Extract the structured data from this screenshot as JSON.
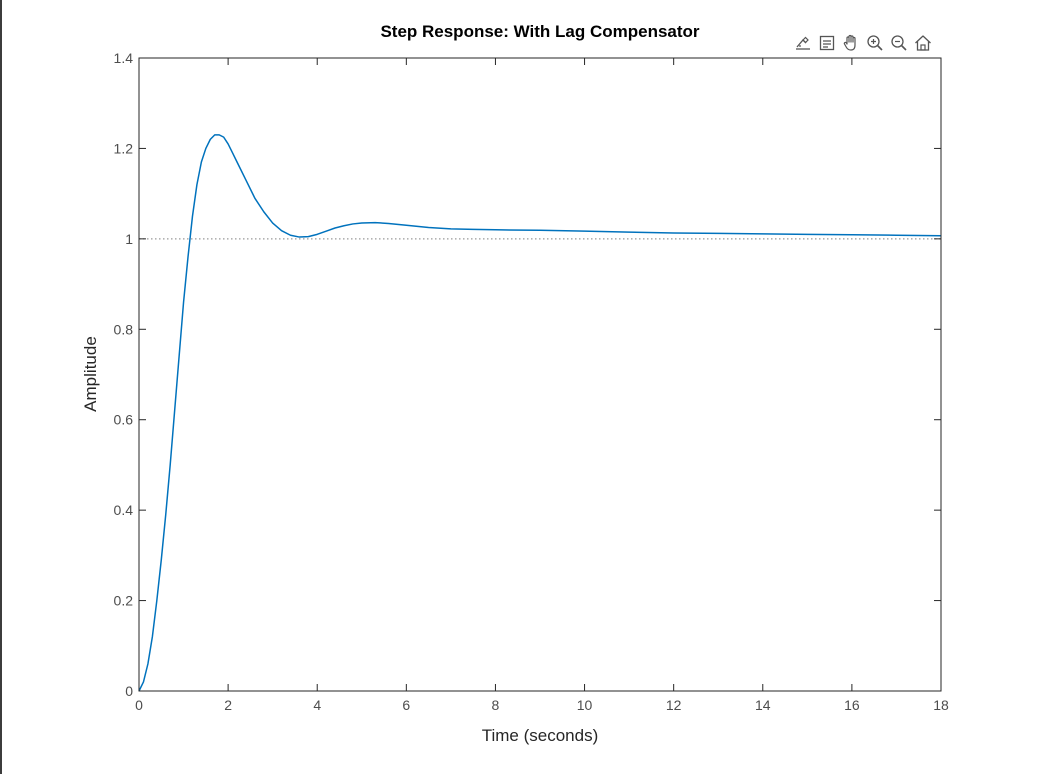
{
  "chart_data": {
    "type": "line",
    "title": "Step Response: With Lag Compensator",
    "xlabel": "Time (seconds)",
    "ylabel": "Amplitude",
    "xlim": [
      0,
      18
    ],
    "ylim": [
      0,
      1.4
    ],
    "xticks": [
      0,
      2,
      4,
      6,
      8,
      10,
      12,
      14,
      16,
      18
    ],
    "xtick_labels": [
      "0",
      "2",
      "4",
      "6",
      "8",
      "10",
      "12",
      "14",
      "16",
      "18"
    ],
    "yticks": [
      0,
      0.2,
      0.4,
      0.6,
      0.8,
      1,
      1.2,
      1.4
    ],
    "ytick_labels": [
      "0",
      "0.2",
      "0.4",
      "0.6",
      "0.8",
      "1",
      "1.2",
      "1.4"
    ],
    "grid": false,
    "reference_line": {
      "y": 1,
      "style": "dotted",
      "color": "#9a9a9a"
    },
    "series": [
      {
        "color": "#0072bd",
        "x": [
          0,
          0.1,
          0.2,
          0.3,
          0.4,
          0.5,
          0.6,
          0.7,
          0.8,
          0.9,
          1.0,
          1.1,
          1.2,
          1.3,
          1.4,
          1.5,
          1.6,
          1.7,
          1.8,
          1.9,
          2.0,
          2.1,
          2.2,
          2.4,
          2.6,
          2.8,
          3.0,
          3.2,
          3.4,
          3.6,
          3.8,
          4.0,
          4.2,
          4.4,
          4.6,
          4.8,
          5.0,
          5.3,
          5.6,
          6.0,
          6.5,
          7.0,
          7.5,
          8.0,
          9.0,
          10.0,
          11.0,
          12.0,
          13.0,
          14.0,
          15.0,
          16.0,
          17.0,
          18.0
        ],
        "y": [
          0,
          0.02,
          0.06,
          0.12,
          0.2,
          0.29,
          0.39,
          0.5,
          0.62,
          0.74,
          0.86,
          0.96,
          1.05,
          1.12,
          1.17,
          1.2,
          1.22,
          1.23,
          1.23,
          1.225,
          1.21,
          1.19,
          1.17,
          1.13,
          1.09,
          1.06,
          1.035,
          1.018,
          1.008,
          1.004,
          1.005,
          1.01,
          1.017,
          1.024,
          1.029,
          1.033,
          1.035,
          1.036,
          1.034,
          1.03,
          1.025,
          1.022,
          1.021,
          1.02,
          1.019,
          1.017,
          1.015,
          1.013,
          1.012,
          1.011,
          1.01,
          1.009,
          1.008,
          1.007
        ]
      }
    ]
  },
  "toolbar": {
    "tools": [
      {
        "name": "export-icon"
      },
      {
        "name": "datatip-icon"
      },
      {
        "name": "pan-icon"
      },
      {
        "name": "zoom-in-icon"
      },
      {
        "name": "zoom-out-icon"
      },
      {
        "name": "home-icon"
      }
    ]
  }
}
